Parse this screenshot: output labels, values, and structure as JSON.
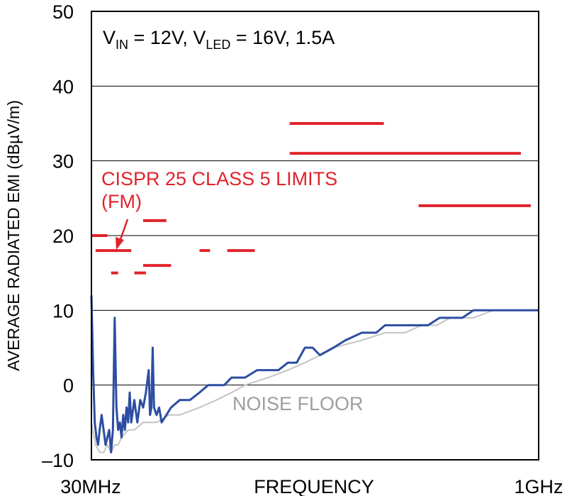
{
  "chart_data": {
    "type": "line",
    "condition_text": {
      "v_in_main": "V",
      "v_in_sub": "IN",
      "v_in_value": " = 12V, ",
      "v_led_main": "V",
      "v_led_sub": "LED",
      "v_led_value": " = 16V, 1.5A"
    },
    "ylabel": "AVERAGE RADIATED EMI (dBµV/m)",
    "xlabel": "FREQUENCY",
    "x_tick_labels": {
      "start": "30MHz",
      "end": "1GHz"
    },
    "x_scale": "log",
    "xlim": [
      30,
      1000
    ],
    "ylim": [
      -10,
      50
    ],
    "y_ticks": [
      -10,
      0,
      10,
      20,
      30,
      40,
      50
    ],
    "y_tick_labels": [
      "–10",
      "0",
      "10",
      "20",
      "30",
      "40",
      "50"
    ],
    "grid": true,
    "limits_label_line1": "CISPR 25 CLASS 5 LIMITS",
    "limits_label_line2": "(FM)",
    "noise_floor_label": "NOISE FLOOR",
    "limit_segments": [
      {
        "f_start": 30,
        "f_end": 34,
        "level": 20
      },
      {
        "f_start": 31,
        "f_end": 41,
        "level": 18
      },
      {
        "f_start": 35,
        "f_end": 37,
        "level": 15
      },
      {
        "f_start": 42,
        "f_end": 46,
        "level": 15
      },
      {
        "f_start": 45,
        "f_end": 54,
        "level": 22
      },
      {
        "f_start": 45,
        "f_end": 56,
        "level": 16
      },
      {
        "f_start": 70,
        "f_end": 76,
        "level": 18
      },
      {
        "f_start": 87,
        "f_end": 108,
        "level": 18
      },
      {
        "f_start": 142,
        "f_end": 297,
        "level": 35
      },
      {
        "f_start": 142,
        "f_end": 870,
        "level": 31
      },
      {
        "f_start": 390,
        "f_end": 940,
        "level": 24
      }
    ],
    "series": [
      {
        "x": [
          30,
          30.4,
          30.8,
          31.2,
          31.6,
          32,
          32.5,
          33,
          33.5,
          34,
          34.5,
          35,
          35.5,
          36,
          36.5,
          37,
          37.5,
          38,
          38.5,
          39,
          39.5,
          40,
          40.5,
          41,
          42,
          43,
          44,
          45,
          46,
          47,
          47.5,
          48,
          48.5,
          49,
          50,
          51,
          52,
          54,
          56,
          60,
          65,
          70,
          75,
          80,
          85,
          90,
          95,
          100,
          110,
          120,
          130,
          140,
          150,
          160,
          170,
          180,
          200,
          220,
          250,
          280,
          300,
          320,
          350,
          380,
          420,
          460,
          500,
          550,
          600,
          650,
          700,
          750,
          800,
          850,
          900,
          950,
          1000
        ],
        "values": [
          12,
          2,
          -5,
          -7,
          -8,
          -6,
          -4,
          -6,
          -8,
          -7,
          -6,
          -9,
          -6,
          9,
          -3,
          -6,
          -5,
          -7,
          -4,
          -6,
          -3,
          -5,
          -1,
          -5,
          -2,
          -5,
          -2,
          -3,
          -1,
          2,
          -4,
          -3,
          5,
          -3,
          -4,
          -3,
          -5,
          -4,
          -3,
          -2,
          -2,
          -1,
          0,
          0,
          0,
          1,
          1,
          1,
          2,
          2,
          2,
          3,
          3,
          5,
          5,
          4,
          5,
          6,
          7,
          7,
          8,
          8,
          8,
          8,
          8,
          9,
          9,
          9,
          10,
          10,
          10,
          10,
          10,
          10,
          10,
          10,
          10
        ]
      },
      {
        "x": [
          30,
          31,
          32,
          33,
          34,
          35,
          36,
          37,
          38,
          40,
          42,
          45,
          50,
          55,
          60,
          70,
          80,
          90,
          100,
          120,
          140,
          160,
          180,
          200,
          250,
          300,
          350,
          400,
          450,
          500,
          600,
          700,
          800,
          900,
          1000
        ],
        "values": [
          -5,
          -8,
          -9,
          -9,
          -8,
          -9,
          -8,
          -8,
          -7,
          -6,
          -6,
          -5,
          -5,
          -4,
          -4,
          -3,
          -2,
          -1,
          0,
          1,
          2,
          3,
          4,
          5,
          6,
          7,
          7,
          8,
          8,
          9,
          9,
          10,
          10,
          10,
          10
        ]
      }
    ],
    "colors": {
      "emi": "#2c4da1",
      "noise_floor": "#c4c4c4",
      "limits": "#e0232b",
      "grid": "#000000"
    }
  }
}
